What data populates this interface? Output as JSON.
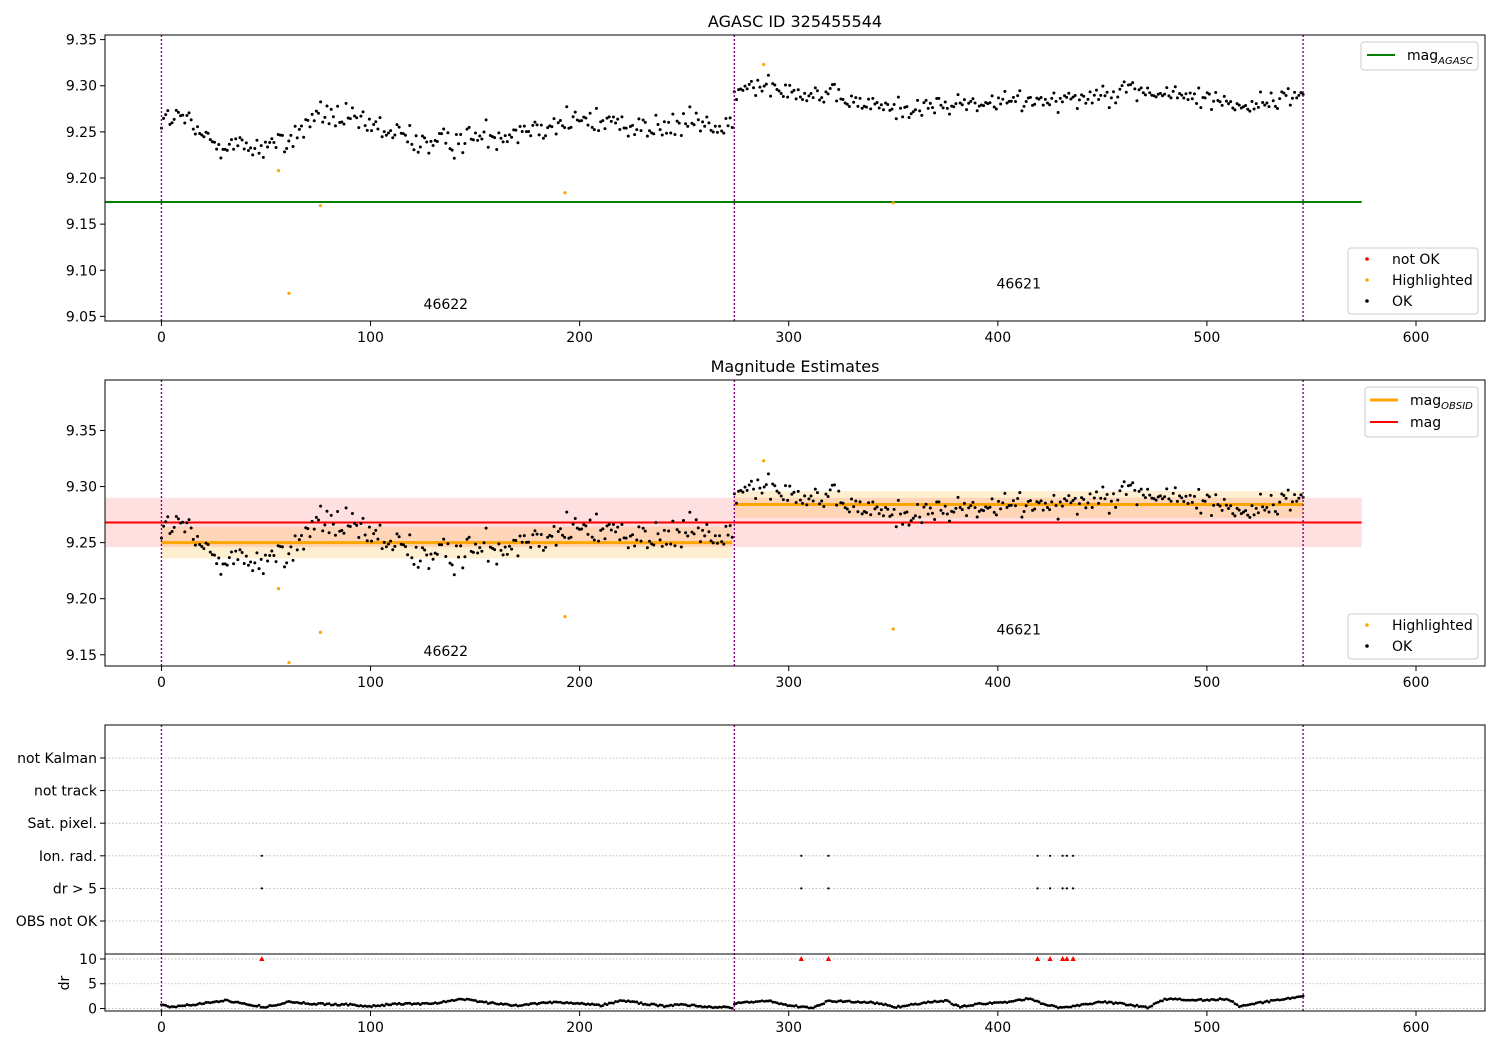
{
  "figure_title": "AGASC ID 325455544",
  "chart_data": [
    {
      "type": "scatter",
      "title": "AGASC ID 325455544",
      "xlim": [
        -27,
        633
      ],
      "ylim": [
        9.045,
        9.355
      ],
      "xticks": [
        0,
        100,
        200,
        300,
        400,
        500,
        600
      ],
      "xtick_labels": [
        "0",
        "100",
        "200",
        "300",
        "400",
        "500",
        "600"
      ],
      "yticks": [
        9.05,
        9.1,
        9.15,
        9.2,
        9.25,
        9.3,
        9.35
      ],
      "ytick_labels": [
        "9.05",
        "9.10",
        "9.15",
        "9.20",
        "9.25",
        "9.30",
        "9.35"
      ],
      "obsid_boundaries": [
        0,
        274,
        546
      ],
      "obsid_labels": [
        {
          "label": "46622",
          "x": 136,
          "y": 9.058
        },
        {
          "label": "46621",
          "x": 410,
          "y": 9.08
        }
      ],
      "mag_agasc": {
        "name": "mag_AGASC",
        "value": 9.174,
        "x": [
          -27,
          574
        ],
        "color": "#008000"
      },
      "series": [
        {
          "name": "not OK",
          "color": "#ff0000",
          "points": []
        },
        {
          "name": "Highlighted",
          "color": "#ffa500",
          "points": [
            [
              56,
              9.208
            ],
            [
              61,
              9.075
            ],
            [
              76,
              9.17
            ],
            [
              193,
              9.184
            ],
            [
              288,
              9.323
            ],
            [
              350,
              9.173
            ]
          ]
        },
        {
          "name": "OK",
          "color": "#000000",
          "segments": [
            {
              "x0": 0,
              "x1": 273,
              "n": 270,
              "knots_x": [
                0,
                10,
                20,
                40,
                60,
                75,
                90,
                110,
                130,
                145,
                160,
                180,
                200,
                220,
                240,
                255,
                273
              ],
              "knots_y": [
                9.262,
                9.266,
                9.243,
                9.233,
                9.238,
                9.27,
                9.262,
                9.249,
                9.236,
                9.243,
                9.247,
                9.257,
                9.262,
                9.26,
                9.252,
                9.262,
                9.25
              ],
              "noise": 0.014
            },
            {
              "x0": 274,
              "x1": 546,
              "n": 268,
              "knots_x": [
                274,
                290,
                300,
                320,
                340,
                360,
                380,
                400,
                420,
                440,
                460,
                480,
                500,
                520,
                546
              ],
              "knots_y": [
                9.292,
                9.304,
                9.296,
                9.288,
                9.278,
                9.275,
                9.28,
                9.281,
                9.286,
                9.287,
                9.297,
                9.29,
                9.287,
                9.278,
                9.291
              ],
              "noise": 0.011
            }
          ]
        }
      ],
      "legends": {
        "top_right": [
          "mag_AGASC"
        ],
        "bottom_right": [
          "not OK",
          "Highlighted",
          "OK"
        ]
      }
    },
    {
      "type": "scatter",
      "title": "Magnitude Estimates",
      "xlim": [
        -27,
        633
      ],
      "ylim": [
        9.14,
        9.395
      ],
      "xticks": [
        0,
        100,
        200,
        300,
        400,
        500,
        600
      ],
      "xtick_labels": [
        "0",
        "100",
        "200",
        "300",
        "400",
        "500",
        "600"
      ],
      "yticks": [
        9.15,
        9.2,
        9.25,
        9.3,
        9.35
      ],
      "ytick_labels": [
        "9.15",
        "9.20",
        "9.25",
        "9.30",
        "9.35"
      ],
      "obsid_boundaries": [
        0,
        274,
        546
      ],
      "obsid_labels": [
        {
          "label": "46622",
          "x": 136,
          "y": 9.149
        },
        {
          "label": "46621",
          "x": 410,
          "y": 9.168
        }
      ],
      "mag": {
        "name": "mag",
        "value": 9.268,
        "band": [
          9.246,
          9.29
        ],
        "x": [
          -27,
          574
        ],
        "color": "#ff0000"
      },
      "mag_obsid": [
        {
          "name": "mag_OBSID",
          "x": [
            0,
            273
          ],
          "value": 9.25,
          "band": [
            9.236,
            9.264
          ],
          "color": "#ffa500"
        },
        {
          "name": "mag_OBSID",
          "x": [
            274,
            546
          ],
          "value": 9.284,
          "band": [
            9.272,
            9.296
          ],
          "color": "#ffa500"
        }
      ],
      "series": [
        {
          "name": "Highlighted",
          "color": "#ffa500",
          "points": [
            [
              56,
              9.209
            ],
            [
              61,
              9.143
            ],
            [
              76,
              9.17
            ],
            [
              193,
              9.184
            ],
            [
              288,
              9.323
            ],
            [
              350,
              9.173
            ]
          ]
        },
        {
          "name": "OK",
          "color": "#000000",
          "same_as_panel": 0
        }
      ],
      "legends": {
        "top_right": [
          "mag_OBSID",
          "mag"
        ],
        "bottom_right": [
          "Highlighted",
          "OK"
        ]
      }
    },
    {
      "type": "scatter",
      "title": "",
      "xlim": [
        -27,
        633
      ],
      "xticks": [
        0,
        100,
        200,
        300,
        400,
        500,
        600
      ],
      "xtick_labels": [
        "0",
        "100",
        "200",
        "300",
        "400",
        "500",
        "600"
      ],
      "obsid_boundaries": [
        0,
        274,
        546
      ],
      "flag_rows": [
        "not Kalman",
        "not track",
        "Sat. pixel.",
        "Ion. rad.",
        "dr > 5",
        "OBS not OK"
      ],
      "flag_points": {
        "Ion. rad.": [
          48,
          306,
          319,
          419,
          425,
          431,
          433,
          436
        ],
        "dr > 5": [
          48,
          306,
          319,
          419,
          425,
          431,
          433,
          436
        ]
      },
      "dr": {
        "ylabel": "dr",
        "ylim": [
          -0.5,
          11
        ],
        "yticks": [
          0,
          5,
          10
        ],
        "ytick_labels": [
          "0",
          "5",
          "10"
        ],
        "clipped_points": {
          "color": "#ff0000",
          "x": [
            48,
            306,
            319,
            419,
            425,
            431,
            433,
            436
          ],
          "value": 10
        },
        "segments": [
          {
            "x0": 0,
            "x1": 273,
            "n": 270,
            "knots_x": [
              0,
              5,
              20,
              30,
              40,
              50,
              60,
              75,
              90,
              100,
              110,
              130,
              145,
              155,
              170,
              185,
              200,
              210,
              220,
              232,
              240,
              250,
              262,
              273
            ],
            "knots_y": [
              0.8,
              0.3,
              1.0,
              1.7,
              0.9,
              0.3,
              1.3,
              0.9,
              0.8,
              0.4,
              0.9,
              1.0,
              1.9,
              1.2,
              0.6,
              1.3,
              1.1,
              0.6,
              1.6,
              0.9,
              0.5,
              0.8,
              0.3,
              0.2
            ]
          },
          {
            "x0": 274,
            "x1": 546,
            "n": 268,
            "knots_x": [
              274,
              290,
              300,
              306,
              312,
              319,
              330,
              340,
              352,
              360,
              375,
              382,
              390,
              400,
              415,
              422,
              430,
              440,
              450,
              460,
              472,
              480,
              500,
              510,
              516,
              530,
              546
            ],
            "knots_y": [
              1.0,
              1.6,
              0.6,
              0.3,
              0.2,
              1.5,
              1.4,
              1.2,
              0.3,
              0.9,
              1.6,
              0.3,
              0.9,
              1.1,
              2.0,
              0.8,
              0.2,
              0.7,
              1.4,
              0.9,
              0.2,
              1.9,
              1.7,
              2.0,
              0.4,
              1.5,
              2.5
            ]
          }
        ]
      }
    }
  ]
}
